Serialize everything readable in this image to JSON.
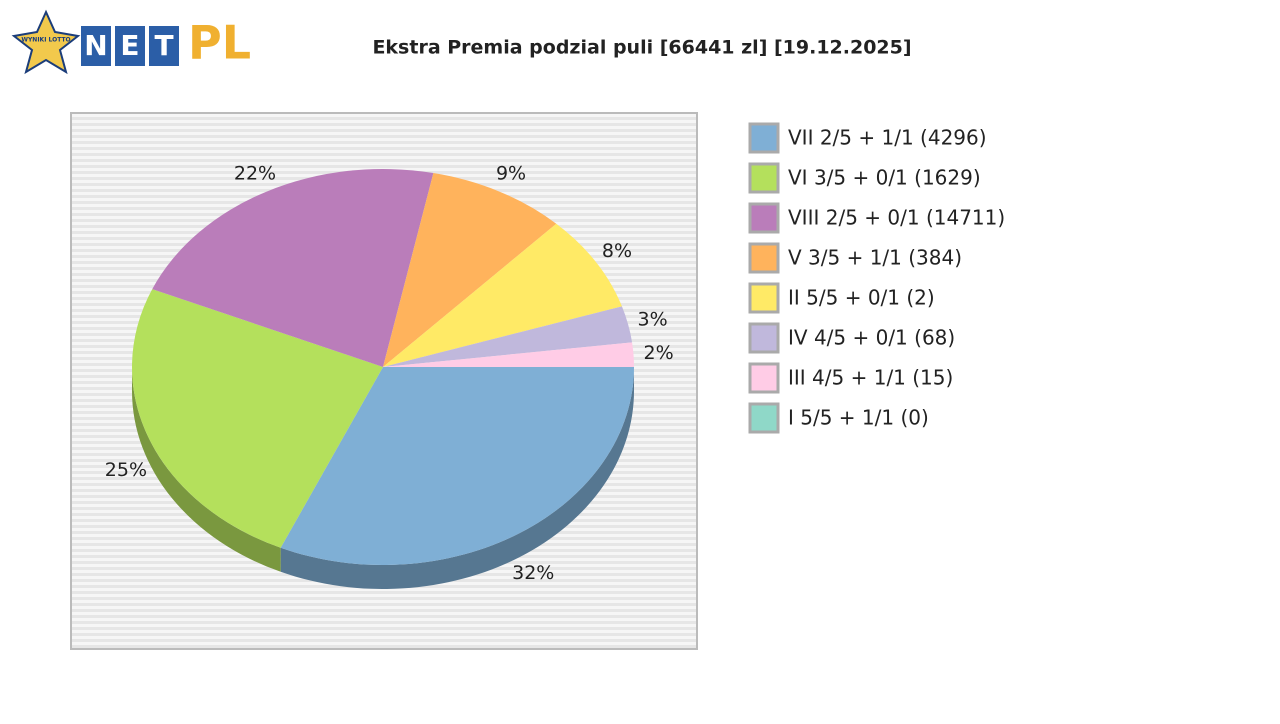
{
  "logo": {
    "badge": "WYNIKI LOTTO",
    "letters": [
      "N",
      "E",
      "T"
    ],
    "suffix": "PL"
  },
  "chart_data": {
    "type": "pie",
    "title": "Ekstra Premia podzial puli [66441 zl] [19.12.2025]",
    "categories": [
      "VII 2/5 + 1/1 (4296)",
      "VI 3/5 + 0/1 (1629)",
      "VIII 2/5 + 0/1 (14711)",
      "V 3/5 + 1/1 (384)",
      "II 5/5 + 0/1 (2)",
      "IV 4/5 + 0/1 (68)",
      "III 4/5 + 1/1 (15)",
      "I 5/5 + 1/1 (0)"
    ],
    "values": [
      32,
      25,
      22,
      9,
      8,
      3,
      2,
      0
    ],
    "value_labels": [
      "32%",
      "25%",
      "22%",
      "9%",
      "8%",
      "3%",
      "2%",
      null
    ],
    "colors": [
      "#7fafd5",
      "#b4e05c",
      "#ba7dba",
      "#ffb35c",
      "#ffea66",
      "#c0b8dc",
      "#ffcce6",
      "#8fd8c8"
    ],
    "legend": "right"
  }
}
